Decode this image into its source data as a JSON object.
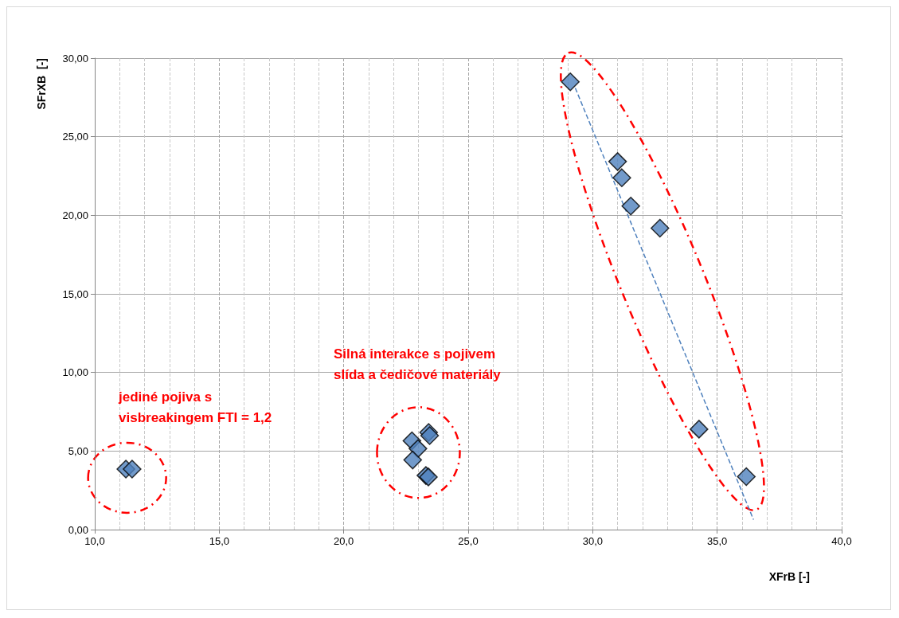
{
  "chart_data": {
    "type": "scatter",
    "xlabel": "XFrB [-]",
    "ylabel": "SFrXB  [-]",
    "xlim": [
      10,
      40
    ],
    "xticks": [
      {
        "value": 10,
        "label": "10,0"
      },
      {
        "value": 15,
        "label": "15,0"
      },
      {
        "value": 20,
        "label": "20,0"
      },
      {
        "value": 25,
        "label": "25,0"
      },
      {
        "value": 30,
        "label": "30,0"
      },
      {
        "value": 35,
        "label": "35,0"
      },
      {
        "value": 40,
        "label": "40,0"
      }
    ],
    "ylim": [
      0,
      30
    ],
    "yticks": [
      {
        "value": 0,
        "label": "0,00"
      },
      {
        "value": 5,
        "label": "5,00"
      },
      {
        "value": 10,
        "label": "10,00"
      },
      {
        "value": 15,
        "label": "15,00"
      },
      {
        "value": 20,
        "label": "20,00"
      },
      {
        "value": 25,
        "label": "25,00"
      },
      {
        "value": 30,
        "label": "30,00"
      }
    ],
    "grid": true,
    "marker": "diamond",
    "series": [
      {
        "color": "#4f81bd",
        "x": [
          11.25,
          11.5,
          22.74,
          22.98,
          22.77,
          23.41,
          23.45,
          23.3,
          23.4,
          29.1,
          31.0,
          31.17,
          31.53,
          32.7,
          34.27,
          36.17
        ],
        "values": [
          3.85,
          3.85,
          5.65,
          5.15,
          4.43,
          6.18,
          5.98,
          3.44,
          3.35,
          28.49,
          23.42,
          22.39,
          20.59,
          19.18,
          6.39,
          3.37
        ]
      },
      {
        "type": "line",
        "color": "#4f81bd",
        "marker": "none",
        "line_style": "dashed",
        "x": [
          29.3,
          36.46
        ],
        "values": [
          28.1,
          0.63
        ]
      }
    ],
    "annotations": [
      "jediné pojiva s\nvisbreakingem FTI = 1,2",
      "Silná interakce s pojivem\nslída a čedičové materiály"
    ]
  }
}
